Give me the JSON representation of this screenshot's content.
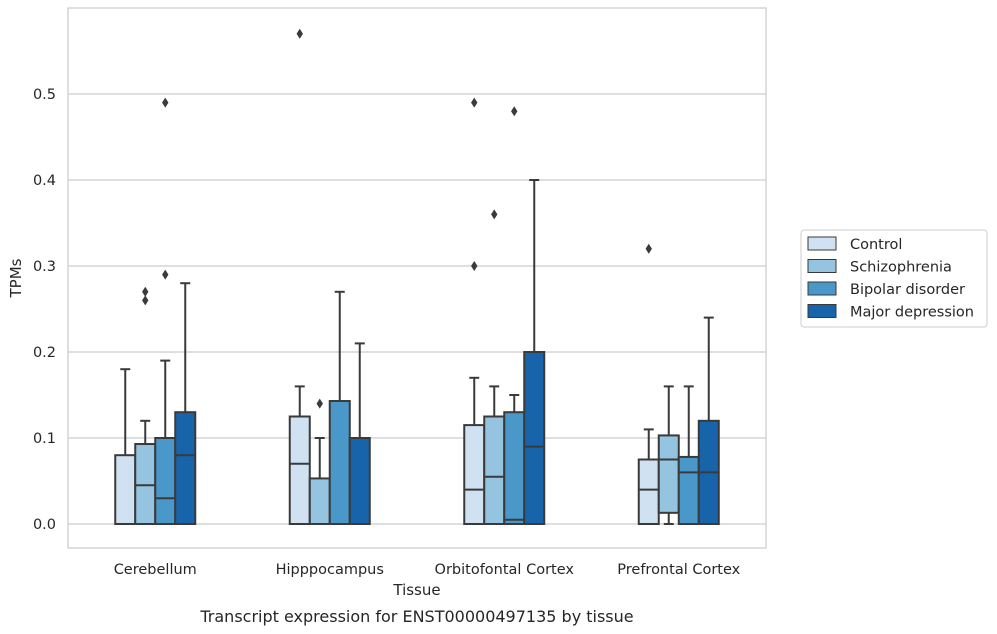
{
  "chart_data": {
    "type": "box",
    "caption": "Transcript expression for ENST00000497135 by tissue",
    "xlabel": "Tissue",
    "ylabel": "TPMs",
    "ylim": [
      -0.028,
      0.6
    ],
    "yticks": [
      "0.0",
      "0.1",
      "0.2",
      "0.3",
      "0.4",
      "0.5"
    ],
    "categories": [
      "Cerebellum",
      "Hipppocampus",
      "Orbitofontal Cortex",
      "Prefrontal Cortex"
    ],
    "grid": true,
    "legend_position": "right",
    "series": [
      {
        "name": "Control",
        "color": "#d0e1f2",
        "boxes": [
          {
            "q1": 0.0,
            "median": 0.0,
            "q3": 0.08,
            "whisker_low": 0.0,
            "whisker_high": 0.18,
            "outliers": []
          },
          {
            "q1": 0.0,
            "median": 0.07,
            "q3": 0.125,
            "whisker_low": 0.0,
            "whisker_high": 0.16,
            "outliers": [
              0.57
            ]
          },
          {
            "q1": 0.0,
            "median": 0.04,
            "q3": 0.115,
            "whisker_low": 0.0,
            "whisker_high": 0.17,
            "outliers": [
              0.49,
              0.3
            ]
          },
          {
            "q1": 0.0,
            "median": 0.04,
            "q3": 0.075,
            "whisker_low": 0.0,
            "whisker_high": 0.11,
            "outliers": [
              0.32
            ]
          }
        ]
      },
      {
        "name": "Schizophrenia",
        "color": "#94c4df",
        "boxes": [
          {
            "q1": 0.0,
            "median": 0.045,
            "q3": 0.093,
            "whisker_low": 0.0,
            "whisker_high": 0.12,
            "outliers": [
              0.27,
              0.26
            ]
          },
          {
            "q1": 0.0,
            "median": 0.0,
            "q3": 0.053,
            "whisker_low": 0.0,
            "whisker_high": 0.1,
            "outliers": [
              0.14
            ]
          },
          {
            "q1": 0.0,
            "median": 0.055,
            "q3": 0.125,
            "whisker_low": 0.0,
            "whisker_high": 0.16,
            "outliers": [
              0.36
            ]
          },
          {
            "q1": 0.013,
            "median": 0.075,
            "q3": 0.103,
            "whisker_low": 0.0,
            "whisker_high": 0.16,
            "outliers": []
          }
        ]
      },
      {
        "name": "Bipolar disorder",
        "color": "#4a98c9",
        "boxes": [
          {
            "q1": 0.0,
            "median": 0.03,
            "q3": 0.1,
            "whisker_low": 0.0,
            "whisker_high": 0.19,
            "outliers": [
              0.49,
              0.29
            ]
          },
          {
            "q1": 0.0,
            "median": 0.0,
            "q3": 0.143,
            "whisker_low": 0.0,
            "whisker_high": 0.27,
            "outliers": []
          },
          {
            "q1": 0.0,
            "median": 0.005,
            "q3": 0.13,
            "whisker_low": 0.0,
            "whisker_high": 0.15,
            "outliers": [
              0.48
            ]
          },
          {
            "q1": 0.0,
            "median": 0.06,
            "q3": 0.078,
            "whisker_low": 0.0,
            "whisker_high": 0.16,
            "outliers": []
          }
        ]
      },
      {
        "name": "Major depression",
        "color": "#1764ab",
        "boxes": [
          {
            "q1": 0.0,
            "median": 0.08,
            "q3": 0.13,
            "whisker_low": 0.0,
            "whisker_high": 0.28,
            "outliers": []
          },
          {
            "q1": 0.0,
            "median": 0.0,
            "q3": 0.1,
            "whisker_low": 0.0,
            "whisker_high": 0.21,
            "outliers": []
          },
          {
            "q1": 0.0,
            "median": 0.09,
            "q3": 0.2,
            "whisker_low": 0.0,
            "whisker_high": 0.4,
            "outliers": []
          },
          {
            "q1": 0.0,
            "median": 0.06,
            "q3": 0.12,
            "whisker_low": 0.0,
            "whisker_high": 0.24,
            "outliers": []
          }
        ]
      }
    ]
  }
}
